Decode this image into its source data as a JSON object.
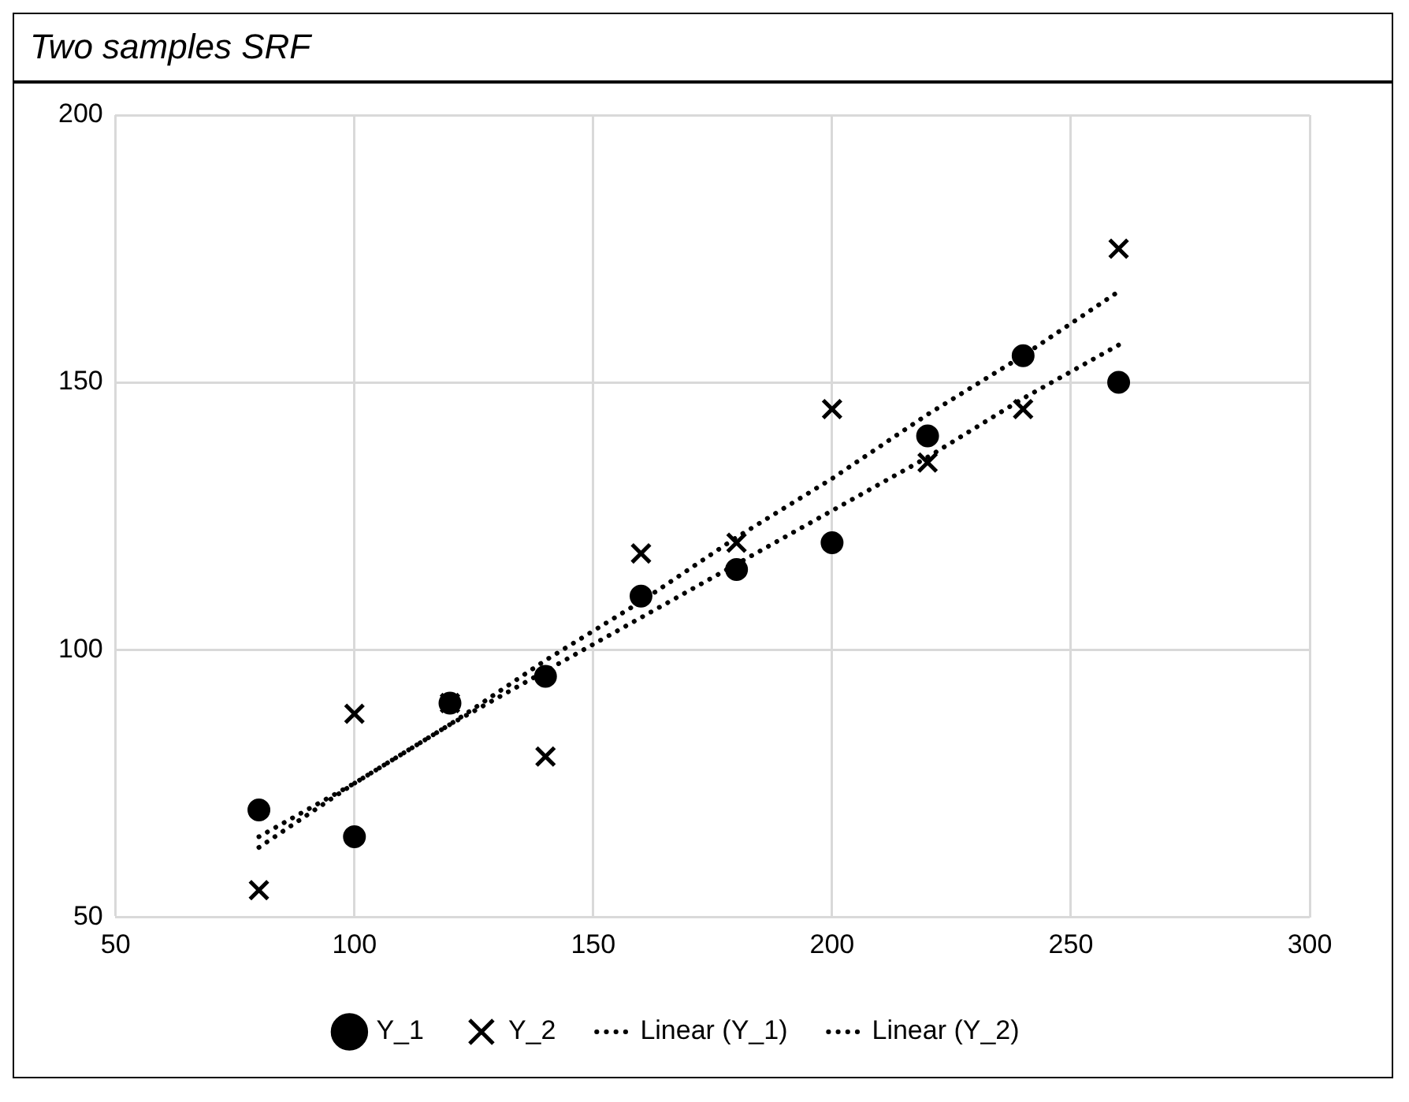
{
  "chart_data": {
    "type": "scatter",
    "title": "Two samples SRF",
    "x": [
      80,
      100,
      120,
      140,
      160,
      180,
      200,
      220,
      240,
      260
    ],
    "series": [
      {
        "name": "Y_1",
        "type": "scatter",
        "color": "#000000",
        "marker": "circle",
        "values": [
          70,
          65,
          90,
          95,
          110,
          115,
          120,
          140,
          155,
          150
        ]
      },
      {
        "name": "Y_2",
        "type": "scatter",
        "color": "#000000",
        "marker": "cross",
        "values": [
          55,
          88,
          90,
          80,
          118,
          120,
          145,
          135,
          145,
          175
        ]
      },
      {
        "name": "Linear (Y_1)",
        "type": "line",
        "color": "#000000",
        "marker": "none",
        "line_style": "dotted",
        "values": [
          65,
          75,
          86,
          96,
          106,
          116,
          126,
          136,
          147,
          157
        ]
      },
      {
        "name": "Linear (Y_2)",
        "type": "line",
        "color": "#000000",
        "marker": "none",
        "line_style": "dotted",
        "values": [
          63,
          75,
          86,
          98,
          109,
          121,
          132,
          144,
          155,
          167
        ]
      }
    ],
    "xlim": [
      50,
      300
    ],
    "xticks": [
      50,
      100,
      150,
      200,
      250,
      300
    ],
    "ylim": [
      50,
      200
    ],
    "yticks": [
      50,
      100,
      150,
      200
    ],
    "grid": true,
    "legend": "bottom"
  }
}
